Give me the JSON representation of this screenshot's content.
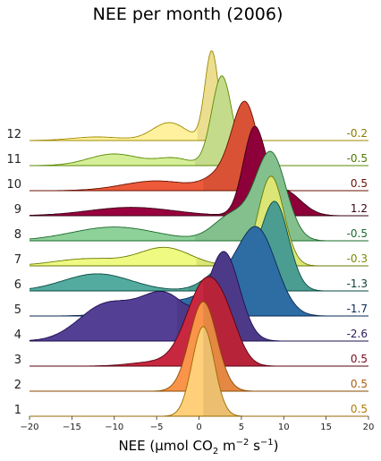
{
  "chart_data": {
    "type": "ridgeline",
    "title": "NEE per month (2006)",
    "xlabel": {
      "prefix": "NEE (μmol CO",
      "sub": "2",
      "mid": " m",
      "sup1": "−2",
      "mid2": " s",
      "sup2": "−1",
      "suffix": ")"
    },
    "xlim": [
      -20,
      20
    ],
    "xticks": [
      -20,
      -15,
      -10,
      -5,
      0,
      5,
      10,
      15,
      20
    ],
    "xtick_labels": [
      "−20",
      "−15",
      "−10",
      "−5",
      "0",
      "5",
      "10",
      "15",
      "20"
    ],
    "series": [
      {
        "name": "1",
        "mean_label": "0.5",
        "mean": 0.5,
        "color": "#ffcf7a",
        "edge": "#9a6a00",
        "text_color": "#b07c00",
        "components": [
          {
            "mu": 0.5,
            "sigma": 1.3,
            "w": 1.0
          }
        ]
      },
      {
        "name": "2",
        "mean_label": "0.5",
        "mean": 0.5,
        "color": "#f9944a",
        "edge": "#8a4a00",
        "text_color": "#b05a10",
        "components": [
          {
            "mu": 0.5,
            "sigma": 1.6,
            "w": 1.0
          }
        ]
      },
      {
        "name": "3",
        "mean_label": "0.5",
        "mean": 0.5,
        "color": "#c7283f",
        "edge": "#5a0010",
        "text_color": "#7a0a1a",
        "components": [
          {
            "mu": 0.8,
            "sigma": 2.2,
            "w": 1.0
          },
          {
            "mu": 3.5,
            "sigma": 1.5,
            "w": 0.25
          },
          {
            "mu": -5,
            "sigma": 3,
            "w": 0.05
          }
        ]
      },
      {
        "name": "4",
        "mean_label": "-2.6",
        "mean": -2.6,
        "color": "#533f94",
        "edge": "#1e1050",
        "text_color": "#2a1a5a",
        "components": [
          {
            "mu": 3.0,
            "sigma": 1.8,
            "w": 0.85
          },
          {
            "mu": -11,
            "sigma": 3.2,
            "w": 0.35
          },
          {
            "mu": -4,
            "sigma": 3,
            "w": 0.45
          }
        ]
      },
      {
        "name": "5",
        "mean_label": "-1.7",
        "mean": -1.7,
        "color": "#3276b2",
        "edge": "#0a2a50",
        "text_color": "#0a2a50",
        "components": [
          {
            "mu": 7.0,
            "sigma": 2.2,
            "w": 1.0
          },
          {
            "mu": 3.0,
            "sigma": 2.5,
            "w": 0.35
          },
          {
            "mu": -4,
            "sigma": 4,
            "w": 0.18
          }
        ]
      },
      {
        "name": "6",
        "mean_label": "-1.3",
        "mean": -1.3,
        "color": "#52ab9e",
        "edge": "#0a4a40",
        "text_color": "#0a3a30",
        "components": [
          {
            "mu": 9.0,
            "sigma": 1.6,
            "w": 1.0
          },
          {
            "mu": 4.0,
            "sigma": 2.5,
            "w": 0.35
          },
          {
            "mu": -12,
            "sigma": 4,
            "w": 0.2
          }
        ]
      },
      {
        "name": "7",
        "mean_label": "-0.3",
        "mean": -0.3,
        "color": "#eefa82",
        "edge": "#6a7a00",
        "text_color": "#7a8a00",
        "components": [
          {
            "mu": 8.5,
            "sigma": 1.5,
            "w": 1.0
          },
          {
            "mu": -4,
            "sigma": 3,
            "w": 0.2
          },
          {
            "mu": -13,
            "sigma": 4,
            "w": 0.08
          }
        ]
      },
      {
        "name": "8",
        "mean_label": "-0.5",
        "mean": -0.5,
        "color": "#8fd19a",
        "edge": "#1a6a2a",
        "text_color": "#1a6a2a",
        "components": [
          {
            "mu": 8.5,
            "sigma": 1.8,
            "w": 1.0
          },
          {
            "mu": 4,
            "sigma": 2.2,
            "w": 0.3
          },
          {
            "mu": -10,
            "sigma": 5,
            "w": 0.16
          }
        ]
      },
      {
        "name": "9",
        "mean_label": "1.2",
        "mean": 1.2,
        "color": "#99003f",
        "edge": "#3a0015",
        "text_color": "#3a0015",
        "components": [
          {
            "mu": 6.5,
            "sigma": 1.3,
            "w": 1.0
          },
          {
            "mu": 10,
            "sigma": 2,
            "w": 0.3
          },
          {
            "mu": -8,
            "sigma": 5,
            "w": 0.1
          }
        ]
      },
      {
        "name": "10",
        "mean_label": "0.5",
        "mean": 0.5,
        "color": "#ec5a3a",
        "edge": "#6a1000",
        "text_color": "#6a1000",
        "components": [
          {
            "mu": 5.5,
            "sigma": 1.5,
            "w": 1.0
          },
          {
            "mu": 3,
            "sigma": 2,
            "w": 0.2
          },
          {
            "mu": -5,
            "sigma": 4,
            "w": 0.12
          }
        ]
      },
      {
        "name": "11",
        "mean_label": "-0.5",
        "mean": -0.5,
        "color": "#d5ee98",
        "edge": "#5a8a00",
        "text_color": "#4a7a00",
        "components": [
          {
            "mu": 2.7,
            "sigma": 1.2,
            "w": 1.0
          },
          {
            "mu": -10,
            "sigma": 3,
            "w": 0.13
          },
          {
            "mu": -3,
            "sigma": 2,
            "w": 0.08
          }
        ]
      },
      {
        "name": "12",
        "mean_label": "-0.2",
        "mean": -0.2,
        "color": "#fff19e",
        "edge": "#a08a00",
        "text_color": "#8a7a00",
        "components": [
          {
            "mu": 1.5,
            "sigma": 0.8,
            "w": 1.0
          },
          {
            "mu": -3.5,
            "sigma": 2,
            "w": 0.2
          },
          {
            "mu": -12,
            "sigma": 3,
            "w": 0.04
          }
        ]
      }
    ]
  }
}
